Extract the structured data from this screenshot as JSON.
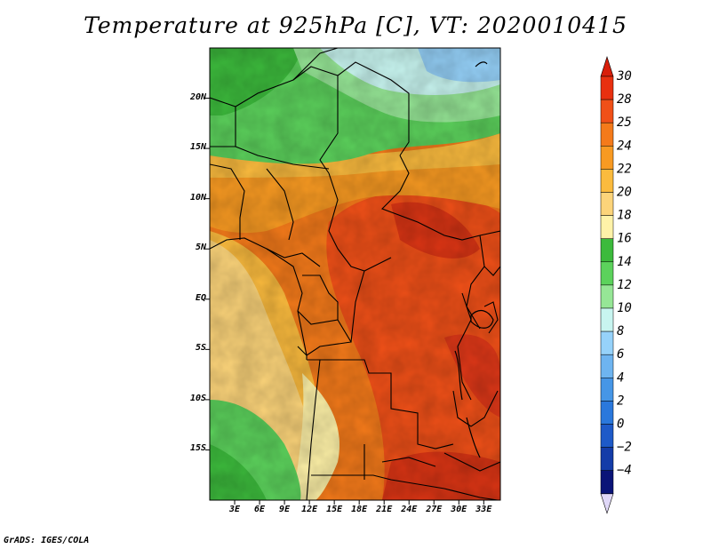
{
  "title": "Temperature at 925hPa [C], VT: 2020010415",
  "footer": "GrADS: IGES/COLA",
  "map": {
    "projection": "latlon",
    "lon_range": [
      0,
      35
    ],
    "lat_range": [
      -20,
      25
    ],
    "lat_labels": [
      {
        "lat": 20,
        "label": "20N"
      },
      {
        "lat": 15,
        "label": "15N"
      },
      {
        "lat": 10,
        "label": "10N"
      },
      {
        "lat": 5,
        "label": "5N"
      },
      {
        "lat": 0,
        "label": "EQ"
      },
      {
        "lat": -5,
        "label": "5S"
      },
      {
        "lat": -10,
        "label": "10S"
      },
      {
        "lat": -15,
        "label": "15S"
      }
    ],
    "lon_labels": [
      {
        "lon": 3,
        "label": "3E"
      },
      {
        "lon": 6,
        "label": "6E"
      },
      {
        "lon": 9,
        "label": "9E"
      },
      {
        "lon": 12,
        "label": "12E"
      },
      {
        "lon": 15,
        "label": "15E"
      },
      {
        "lon": 18,
        "label": "18E"
      },
      {
        "lon": 21,
        "label": "21E"
      },
      {
        "lon": 24,
        "label": "24E"
      },
      {
        "lon": 27,
        "label": "27E"
      },
      {
        "lon": 30,
        "label": "30E"
      },
      {
        "lon": 33,
        "label": "33E"
      }
    ]
  },
  "colorbar": {
    "levels": [
      {
        "label": "30",
        "color": "#e83010"
      },
      {
        "label": "28",
        "color": "#f05018"
      },
      {
        "label": "25",
        "color": "#f47a1a"
      },
      {
        "label": "24",
        "color": "#f89a22"
      },
      {
        "label": "22",
        "color": "#fbbb3e"
      },
      {
        "label": "20",
        "color": "#fcd47a"
      },
      {
        "label": "18",
        "color": "#fff2a8"
      },
      {
        "label": "16",
        "color": "#3cba3c"
      },
      {
        "label": "14",
        "color": "#5cd25c"
      },
      {
        "label": "12",
        "color": "#96e696"
      },
      {
        "label": "10",
        "color": "#c8f5f0"
      },
      {
        "label": "8",
        "color": "#96d2fa"
      },
      {
        "label": "6",
        "color": "#6eb4f0"
      },
      {
        "label": "4",
        "color": "#4696e6"
      },
      {
        "label": "2",
        "color": "#2a78dc"
      },
      {
        "label": "0",
        "color": "#1e5ac8"
      },
      {
        "label": "−2",
        "color": "#143ca8"
      },
      {
        "label": "−4",
        "color": "#0a1478"
      }
    ],
    "top_color": "#d81e0a",
    "bottom_color": "#e0d8f8"
  },
  "fields": {
    "regions": [
      {
        "name": "sahara-north",
        "level": "10",
        "color": "#c8f5f0"
      },
      {
        "name": "sahel-green",
        "level": "14",
        "color": "#5cd25c"
      },
      {
        "name": "central-africa-hot",
        "level": "28",
        "color": "#f05018"
      },
      {
        "name": "gulf-cool",
        "level": "20",
        "color": "#fcd47a"
      },
      {
        "name": "namibia-green",
        "level": "14",
        "color": "#5cd25c"
      }
    ]
  }
}
